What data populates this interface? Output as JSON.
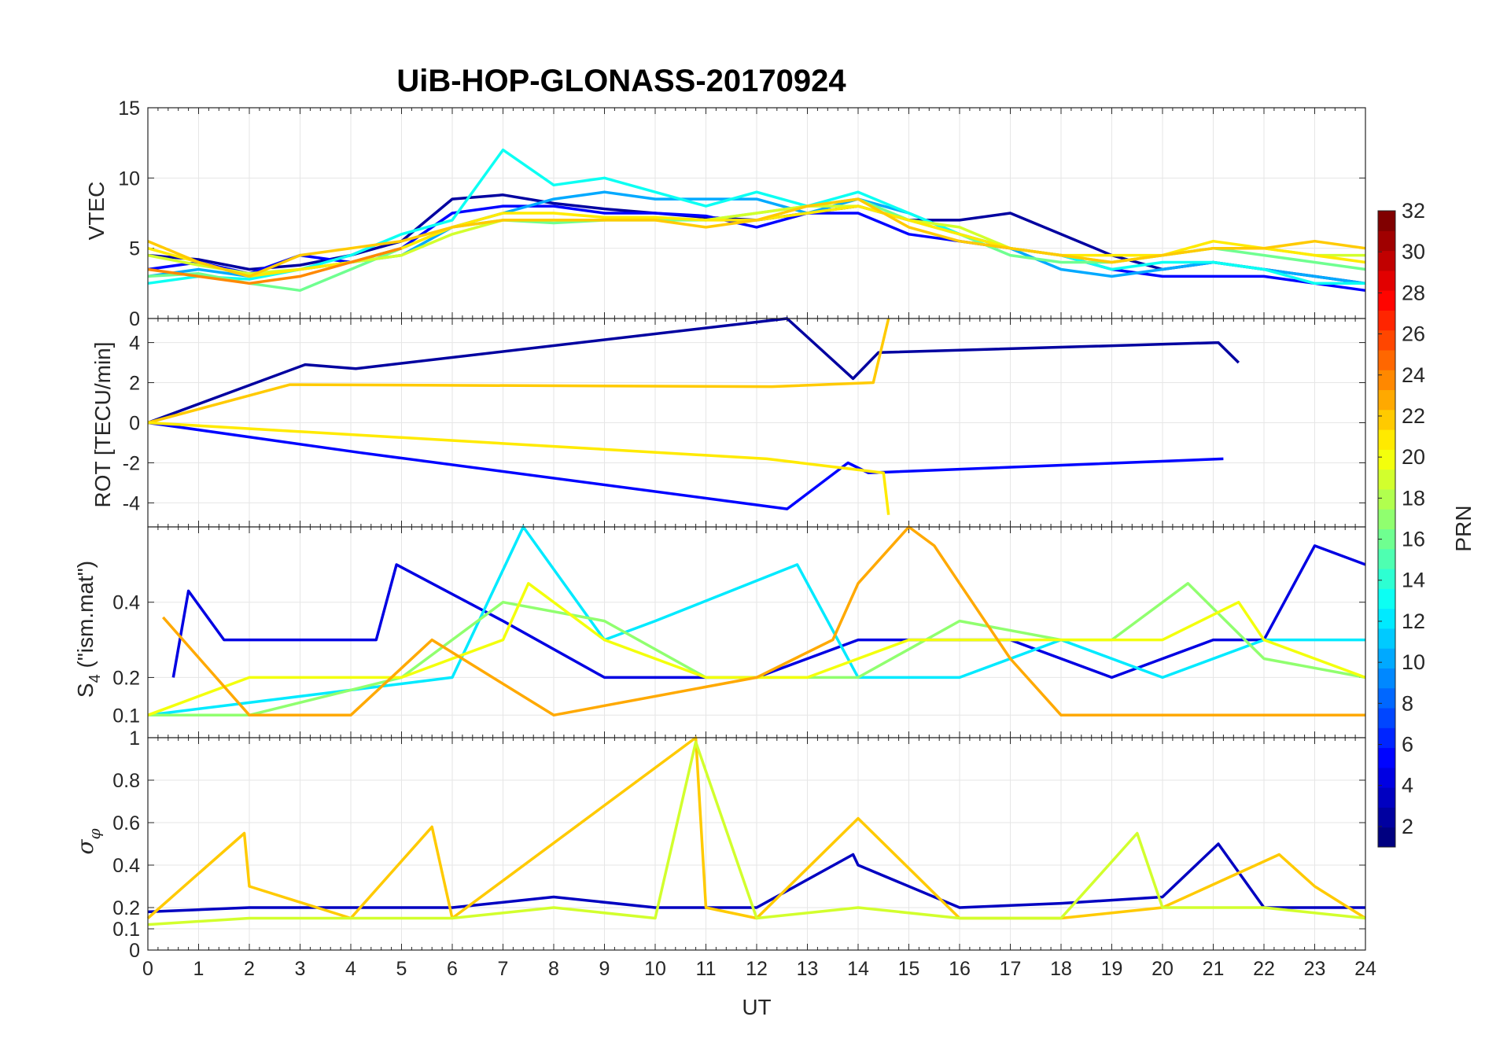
{
  "chart_data": {
    "type": "line",
    "title": "UiB-HOP-GLONASS-20170924",
    "xlabel": "UT",
    "xlim": [
      0,
      24
    ],
    "xticks": [
      "0",
      "1",
      "2",
      "3",
      "4",
      "5",
      "6",
      "7",
      "8",
      "9",
      "10",
      "11",
      "12",
      "13",
      "14",
      "15",
      "16",
      "17",
      "18",
      "19",
      "20",
      "21",
      "22",
      "23",
      "24"
    ],
    "grid": true,
    "colorbar": {
      "label": "PRN",
      "range": [
        1,
        32
      ],
      "ticks": [
        "2",
        "4",
        "6",
        "8",
        "10",
        "12",
        "14",
        "16",
        "18",
        "20",
        "22",
        "24",
        "26",
        "28",
        "30",
        "32"
      ],
      "colormap": "jet",
      "placement": "right"
    },
    "panels": [
      {
        "name": "vtec",
        "ylabel": "VTEC",
        "ylim": [
          0,
          15
        ],
        "yticks": [
          "0",
          "5",
          "10",
          "15"
        ],
        "series": [
          {
            "prn": 2,
            "x": [
              0,
              1,
              2,
              3,
              4,
              5,
              6,
              7,
              8,
              9,
              10,
              11,
              12,
              13,
              14,
              15,
              16,
              17,
              18,
              19,
              20,
              21,
              22,
              23,
              24
            ],
            "y": [
              4.5,
              4.2,
              3.5,
              3.8,
              4.5,
              5.5,
              8.5,
              8.8,
              8.2,
              7.8,
              7.5,
              7.2,
              7,
              7.5,
              8,
              7,
              7,
              7.5,
              6,
              4.5,
              3.5,
              4,
              3.5,
              3,
              2.5
            ]
          },
          {
            "prn": 5,
            "x": [
              0,
              1,
              2,
              3,
              4,
              5,
              6,
              7,
              8,
              9,
              10,
              11,
              12,
              13,
              14,
              15,
              16,
              17,
              18,
              19,
              20,
              21,
              22,
              23,
              24
            ],
            "y": [
              3.5,
              4,
              3.2,
              4.5,
              4,
              5,
              7.5,
              8,
              8,
              7.5,
              7.5,
              7.3,
              6.5,
              7.5,
              7.5,
              6,
              5.5,
              5,
              4.5,
              3.5,
              3,
              3,
              3,
              2.5,
              2
            ]
          },
          {
            "prn": 10,
            "x": [
              0,
              1,
              2,
              3,
              4,
              5,
              6,
              7,
              8,
              9,
              10,
              11,
              12,
              13,
              14,
              15,
              16,
              17,
              18,
              19,
              20,
              21,
              22,
              23,
              24
            ],
            "y": [
              3,
              3.5,
              3,
              3.5,
              4,
              4.5,
              6.5,
              7.5,
              8.5,
              9,
              8.5,
              8.5,
              8.5,
              7.5,
              8.5,
              7.5,
              6,
              5,
              3.5,
              3,
              3.5,
              4,
              3.5,
              3,
              2.5
            ]
          },
          {
            "prn": 13,
            "x": [
              0,
              1,
              2,
              3,
              4,
              5,
              6,
              7,
              8,
              9,
              10,
              11,
              12,
              13,
              14,
              15,
              16,
              17,
              18,
              19,
              20,
              21,
              22,
              23,
              24
            ],
            "y": [
              2.5,
              3,
              2.8,
              3.5,
              4.5,
              6,
              7,
              12,
              9.5,
              10,
              9,
              8,
              9,
              8,
              9,
              7.5,
              6,
              5,
              4.5,
              3.5,
              4,
              4,
              3.5,
              2.5,
              2.5
            ]
          },
          {
            "prn": 16,
            "x": [
              0,
              1,
              2,
              3,
              4,
              5,
              6,
              7,
              8,
              9,
              10,
              11,
              12,
              13,
              14,
              15,
              16,
              17,
              18,
              19,
              20,
              21,
              22,
              23,
              24
            ],
            "y": [
              3,
              3.2,
              2.5,
              2,
              3.5,
              5,
              6.5,
              7,
              6.8,
              7,
              7,
              7,
              7.5,
              8,
              8.5,
              7,
              6,
              4.5,
              4,
              4,
              4.5,
              5,
              4.5,
              4,
              3.5
            ]
          },
          {
            "prn": 19,
            "x": [
              0,
              1,
              2,
              3,
              4,
              5,
              6,
              7,
              8,
              9,
              10,
              11,
              12,
              13,
              14,
              15,
              16,
              17,
              18,
              19,
              20,
              21,
              22,
              23,
              24
            ],
            "y": [
              4.5,
              3.8,
              3.2,
              3.5,
              4,
              4.5,
              6,
              7,
              7,
              7,
              7.2,
              7,
              7.5,
              8,
              8,
              7,
              6.5,
              5,
              4.5,
              4,
              4.5,
              5,
              5,
              4.5,
              4.5
            ]
          },
          {
            "prn": 21,
            "x": [
              0,
              1,
              2,
              3,
              4,
              5,
              6,
              7,
              8,
              9,
              10,
              11,
              12,
              13,
              14,
              15,
              16,
              17,
              18,
              19,
              20,
              21,
              22,
              23,
              24
            ],
            "y": [
              5,
              4,
              3,
              3.5,
              4,
              5,
              6.5,
              7.5,
              7.5,
              7.2,
              7.2,
              7,
              7,
              7.5,
              8,
              7,
              6,
              5,
              4.5,
              4.5,
              4.5,
              5.5,
              5,
              4.5,
              4
            ]
          },
          {
            "prn": 22,
            "x": [
              0,
              1,
              2,
              3,
              4,
              5,
              6,
              7,
              8,
              9,
              10,
              11,
              12,
              13,
              14,
              15,
              16,
              17,
              18,
              19,
              20,
              21,
              22,
              23,
              24
            ],
            "y": [
              5.5,
              4,
              3,
              4.5,
              5,
              5.5,
              6.5,
              7,
              7,
              7,
              7,
              6.5,
              7,
              8,
              8.5,
              6.5,
              5.5,
              5,
              4.5,
              4,
              4.5,
              5,
              5,
              5.5,
              5
            ]
          },
          {
            "prn": 24,
            "x": [
              0,
              1,
              2,
              3,
              4,
              5
            ],
            "y": [
              3.5,
              3,
              2.5,
              3,
              4,
              5
            ]
          }
        ]
      },
      {
        "name": "rot",
        "ylabel": "ROT [TECU/min]",
        "ylim": [
          -5.2,
          5.2
        ],
        "yticks": [
          "-4",
          "-2",
          "0",
          "2",
          "4"
        ],
        "series": [
          {
            "prn": 2,
            "x": [
              0,
              3.1,
              4.1,
              12.6,
              13.9,
              14.4,
              21.1,
              21.5
            ],
            "y": [
              0,
              2.9,
              2.7,
              5.3,
              2.2,
              3.5,
              4,
              3
            ]
          },
          {
            "prn": 5,
            "x": [
              0,
              4.2,
              12.6,
              13.8,
              14.2,
              21.2
            ],
            "y": [
              0,
              -1.5,
              -4.3,
              -2,
              -2.5,
              -1.8
            ]
          },
          {
            "prn": 22,
            "x": [
              0,
              2.8,
              12.3,
              14.3,
              14.6
            ],
            "y": [
              0,
              1.9,
              1.8,
              2,
              5.5
            ]
          },
          {
            "prn": 21,
            "x": [
              0,
              12.2,
              14.5,
              14.6
            ],
            "y": [
              0,
              -1.8,
              -2.5,
              -4.6
            ]
          }
        ]
      },
      {
        "name": "s4",
        "ylabel": "S4 (\"ism.mat\")",
        "ylabel_main": "S",
        "ylabel_sub": "4",
        "ylabel_rest": " (\"ism.mat\")",
        "ylim": [
          0.04,
          0.6
        ],
        "yticks": [
          "0.1",
          "0.2",
          "0.4"
        ],
        "series": [
          {
            "prn": 4,
            "x": [
              0.5,
              0.8,
              1.5,
              3,
              4.5,
              4.9,
              7,
              9,
              12,
              14,
              17,
              19,
              21,
              22,
              23,
              24
            ],
            "y": [
              0.2,
              0.43,
              0.3,
              0.3,
              0.3,
              0.5,
              0.35,
              0.2,
              0.2,
              0.3,
              0.3,
              0.2,
              0.3,
              0.3,
              0.55,
              0.5
            ]
          },
          {
            "prn": 12,
            "x": [
              0,
              3,
              6,
              7.4,
              9,
              10,
              12.8,
              14,
              16,
              18,
              20,
              22,
              24
            ],
            "y": [
              0.1,
              0.15,
              0.2,
              0.6,
              0.3,
              0.35,
              0.5,
              0.2,
              0.2,
              0.3,
              0.2,
              0.3,
              0.3
            ]
          },
          {
            "prn": 17,
            "x": [
              0,
              2,
              5,
              7,
              9,
              11,
              14,
              16,
              18,
              19,
              20.5,
              22,
              24
            ],
            "y": [
              0.1,
              0.1,
              0.2,
              0.4,
              0.35,
              0.2,
              0.2,
              0.35,
              0.3,
              0.3,
              0.45,
              0.25,
              0.2
            ]
          },
          {
            "prn": 20,
            "x": [
              0,
              2,
              5,
              7,
              7.5,
              9,
              11,
              13,
              15,
              18,
              20,
              21.5,
              22,
              24
            ],
            "y": [
              0.1,
              0.2,
              0.2,
              0.3,
              0.45,
              0.3,
              0.2,
              0.2,
              0.3,
              0.3,
              0.3,
              0.4,
              0.3,
              0.2
            ]
          },
          {
            "prn": 23,
            "x": [
              0.3,
              2,
              4,
              5.6,
              8,
              12,
              13.5,
              14,
              15,
              15.5,
              16,
              17,
              18,
              24
            ],
            "y": [
              0.36,
              0.1,
              0.1,
              0.3,
              0.1,
              0.2,
              0.3,
              0.45,
              0.6,
              0.55,
              0.45,
              0.25,
              0.1,
              0.1
            ]
          }
        ]
      },
      {
        "name": "sigma_phi",
        "ylabel": "σφ",
        "ylabel_main": "σ",
        "ylabel_sub": "φ",
        "ylim": [
          0,
          1
        ],
        "yticks": [
          "0",
          "0.1",
          "0.2",
          "0.4",
          "0.6",
          "0.8",
          "1"
        ],
        "series": [
          {
            "prn": 3,
            "x": [
              0,
              2,
              4,
              6,
              8,
              10,
              12,
              13.9,
              14,
              16,
              18,
              20,
              21.1,
              22,
              24
            ],
            "y": [
              0.18,
              0.2,
              0.2,
              0.2,
              0.25,
              0.2,
              0.2,
              0.45,
              0.4,
              0.2,
              0.22,
              0.25,
              0.5,
              0.2,
              0.2
            ]
          },
          {
            "prn": 22,
            "x": [
              0,
              1.9,
              2,
              4,
              5.6,
              6,
              10.8,
              11,
              12,
              14,
              16,
              18,
              20,
              22.3,
              23,
              24
            ],
            "y": [
              0.15,
              0.55,
              0.3,
              0.15,
              0.58,
              0.15,
              1,
              0.2,
              0.15,
              0.62,
              0.15,
              0.15,
              0.2,
              0.45,
              0.3,
              0.15
            ]
          },
          {
            "prn": 19,
            "x": [
              0,
              2,
              4,
              6,
              8,
              10,
              10.8,
              12,
              14,
              16,
              18,
              19.5,
              20,
              22,
              24
            ],
            "y": [
              0.12,
              0.15,
              0.15,
              0.15,
              0.2,
              0.15,
              0.98,
              0.15,
              0.2,
              0.15,
              0.15,
              0.55,
              0.2,
              0.2,
              0.15
            ]
          }
        ]
      }
    ]
  }
}
